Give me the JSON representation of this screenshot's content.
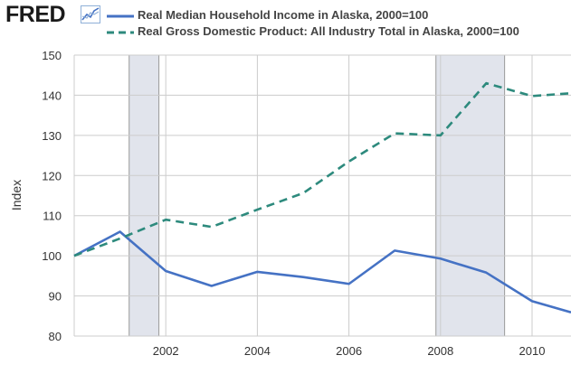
{
  "header": {
    "logo_text": "FRED",
    "logo_icon": "fred-line-graph-icon"
  },
  "colors": {
    "income": "#4572c4",
    "gdp": "#2d8a7d",
    "recession_shade": "#e1e4ec",
    "grid": "#cccccc"
  },
  "chart_data": {
    "type": "line",
    "ylabel": "Index",
    "ylim": [
      80,
      150
    ],
    "yticks": [
      80,
      90,
      100,
      110,
      120,
      130,
      140,
      150
    ],
    "xlim": [
      2000,
      2010.85
    ],
    "xticks": [
      2002,
      2004,
      2006,
      2008,
      2010
    ],
    "grid": true,
    "legend_position": "top",
    "recessions": [
      [
        2001.2,
        2001.85
      ],
      [
        2007.9,
        2009.4
      ]
    ],
    "series": [
      {
        "name": "Real Median Household Income in Alaska, 2000=100",
        "style": "solid",
        "x": [
          2000,
          2001,
          2002,
          2003,
          2004,
          2005,
          2006,
          2007,
          2008,
          2009,
          2010,
          2010.85
        ],
        "y": [
          100,
          106,
          96.2,
          92.5,
          96,
          94.7,
          93,
          101.3,
          99.3,
          95.8,
          88.7,
          85.9
        ]
      },
      {
        "name": "Real Gross Domestic Product: All Industry Total in Alaska, 2000=100",
        "style": "dashed",
        "x": [
          2000,
          2001,
          2002,
          2003,
          2004,
          2005,
          2006,
          2007,
          2008,
          2009,
          2010,
          2010.85
        ],
        "y": [
          100,
          104.3,
          109,
          107.2,
          111.5,
          115.6,
          123.5,
          130.5,
          130,
          143,
          139.8,
          140.5
        ]
      }
    ]
  }
}
